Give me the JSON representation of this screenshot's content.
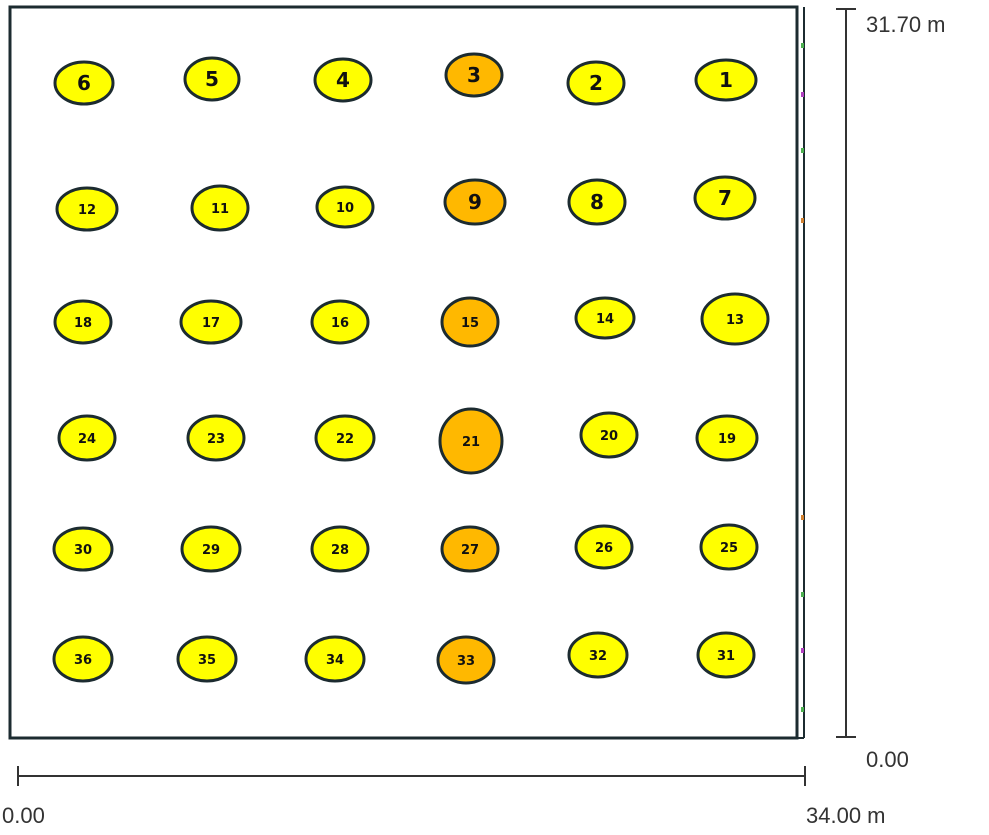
{
  "plot": {
    "bottom_dimension": {
      "start_label": "0.00",
      "end_label": "34.00 m"
    },
    "right_dimension": {
      "start_label": "0.00",
      "end_label": "31.70 m"
    }
  },
  "colors": {
    "yellow": "#FFFF00",
    "orange": "#FFB800",
    "outline": "#1c2b30"
  },
  "nodes": [
    {
      "label": "1",
      "color": "yellow"
    },
    {
      "label": "2",
      "color": "yellow"
    },
    {
      "label": "3",
      "color": "orange"
    },
    {
      "label": "4",
      "color": "yellow"
    },
    {
      "label": "5",
      "color": "yellow"
    },
    {
      "label": "6",
      "color": "yellow"
    },
    {
      "label": "7",
      "color": "yellow"
    },
    {
      "label": "8",
      "color": "yellow"
    },
    {
      "label": "9",
      "color": "orange"
    },
    {
      "label": "10",
      "color": "yellow"
    },
    {
      "label": "11",
      "color": "yellow"
    },
    {
      "label": "12",
      "color": "yellow"
    },
    {
      "label": "13",
      "color": "yellow"
    },
    {
      "label": "14",
      "color": "yellow"
    },
    {
      "label": "15",
      "color": "orange"
    },
    {
      "label": "16",
      "color": "yellow"
    },
    {
      "label": "17",
      "color": "yellow"
    },
    {
      "label": "18",
      "color": "yellow"
    },
    {
      "label": "19",
      "color": "yellow"
    },
    {
      "label": "20",
      "color": "yellow"
    },
    {
      "label": "21",
      "color": "orange"
    },
    {
      "label": "22",
      "color": "yellow"
    },
    {
      "label": "23",
      "color": "yellow"
    },
    {
      "label": "24",
      "color": "yellow"
    },
    {
      "label": "25",
      "color": "yellow"
    },
    {
      "label": "26",
      "color": "yellow"
    },
    {
      "label": "27",
      "color": "orange"
    },
    {
      "label": "28",
      "color": "yellow"
    },
    {
      "label": "29",
      "color": "yellow"
    },
    {
      "label": "30",
      "color": "yellow"
    },
    {
      "label": "31",
      "color": "yellow"
    },
    {
      "label": "32",
      "color": "yellow"
    },
    {
      "label": "33",
      "color": "orange"
    },
    {
      "label": "34",
      "color": "yellow"
    },
    {
      "label": "35",
      "color": "yellow"
    },
    {
      "label": "36",
      "color": "yellow"
    }
  ]
}
